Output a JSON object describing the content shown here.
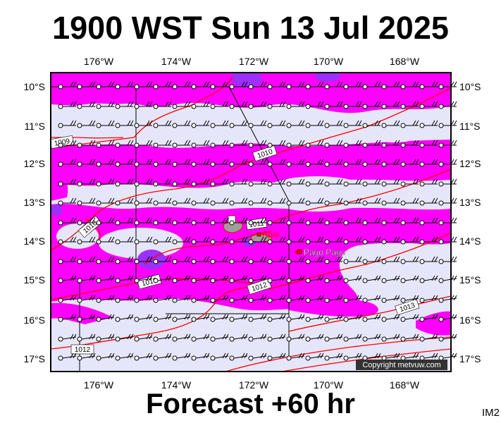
{
  "title": "1900 WST Sun 13 Jul 2025",
  "subtitle": "Forecast +60 hr",
  "image_code": "IM2",
  "copyright": "Copyright metvuw.com",
  "colors": {
    "background_field": "#e6e6fa",
    "precip_moderate": "#ff00ff",
    "precip_heavy": "#9b30ff",
    "isobar": "#ff0000",
    "frame": "#000000",
    "land": "#9e9e9e"
  },
  "map": {
    "lon_labels": [
      "176°W",
      "174°W",
      "172°W",
      "170°W",
      "168°W"
    ],
    "lat_labels": [
      "10°S",
      "11°S",
      "12°S",
      "13°S",
      "14°S",
      "15°S",
      "16°S",
      "17°S"
    ],
    "places": [
      {
        "name": "Apia",
        "lon": -171.77,
        "lat": -13.83
      },
      {
        "name": "Pago Pago",
        "lon": -170.7,
        "lat": -14.28
      }
    ],
    "isobar_labels": [
      {
        "text": "1009"
      },
      {
        "text": "1010"
      },
      {
        "text": "1010"
      },
      {
        "text": "1010"
      },
      {
        "text": "1011"
      },
      {
        "text": "1010"
      },
      {
        "text": "1012"
      },
      {
        "text": "1013"
      },
      {
        "text": "1012"
      }
    ],
    "wind": {
      "symbol": "wind-barb",
      "direction": "easterly"
    }
  }
}
